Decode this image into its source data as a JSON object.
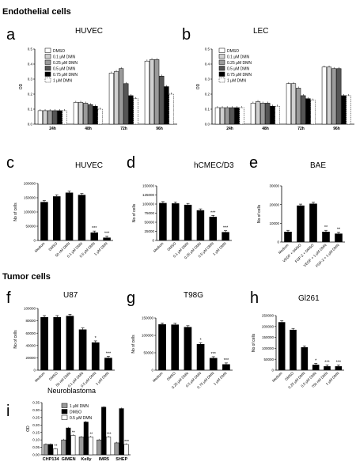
{
  "sections": {
    "endothelial": "Endothelial cells",
    "tumor": "Tumor cells"
  },
  "colors": {
    "black": "#000000",
    "gray": "#9a9a9a",
    "darkgray": "#555555",
    "lightgray": "#d0d0d0",
    "white": "#ffffff"
  },
  "chart_data": [
    {
      "id": "a",
      "type": "bar",
      "title": "HUVEC",
      "ylabel": "OD",
      "ylim": [
        0,
        0.5
      ],
      "yticks": [
        "0.0",
        "0.1",
        "0.2",
        "0.3",
        "0.4",
        "0.5"
      ],
      "categories": [
        "24h",
        "48h",
        "72h",
        "96h"
      ],
      "legend": [
        "DMSO",
        "0.1 μM DMN",
        "0.25 μM DMN",
        "0.5 μM DMN",
        "0.75 μM DMN",
        "1 μM DMN"
      ],
      "series": [
        {
          "name": "DMSO",
          "values": [
            0.09,
            0.145,
            0.34,
            0.42
          ]
        },
        {
          "name": "0.1 μM DMN",
          "values": [
            0.09,
            0.145,
            0.35,
            0.43
          ]
        },
        {
          "name": "0.25 μM DMN",
          "values": [
            0.09,
            0.14,
            0.37,
            0.43
          ]
        },
        {
          "name": "0.5 μM DMN",
          "values": [
            0.09,
            0.13,
            0.27,
            0.32
          ]
        },
        {
          "name": "0.75 μM DMN",
          "values": [
            0.09,
            0.12,
            0.19,
            0.25
          ]
        },
        {
          "name": "1 μM DMN",
          "values": [
            0.09,
            0.1,
            0.17,
            0.2
          ]
        }
      ]
    },
    {
      "id": "b",
      "type": "bar",
      "title": "LEC",
      "ylabel": "OD",
      "ylim": [
        0,
        0.5
      ],
      "yticks": [
        "0.0",
        "0.1",
        "0.2",
        "0.3",
        "0.4",
        "0.5"
      ],
      "categories": [
        "24h",
        "48h",
        "72h",
        "96h"
      ],
      "legend": [
        "DMSO",
        "0.1 μM DMN",
        "0.25 μM DMN",
        "0.5 μM DMN",
        "0.75 μM DMN",
        "1 μM DMN"
      ],
      "series": [
        {
          "name": "DMSO",
          "values": [
            0.11,
            0.14,
            0.27,
            0.38
          ]
        },
        {
          "name": "0.1 μM DMN",
          "values": [
            0.11,
            0.15,
            0.27,
            0.38
          ]
        },
        {
          "name": "0.25 μM DMN",
          "values": [
            0.11,
            0.14,
            0.24,
            0.37
          ]
        },
        {
          "name": "0.5 μM DMN",
          "values": [
            0.11,
            0.14,
            0.19,
            0.37
          ]
        },
        {
          "name": "0.75 μM DMN",
          "values": [
            0.11,
            0.12,
            0.17,
            0.19
          ]
        },
        {
          "name": "1 μM DMN",
          "values": [
            0.11,
            0.12,
            0.16,
            0.19
          ]
        }
      ]
    },
    {
      "id": "c",
      "type": "bar",
      "title": "HUVEC",
      "ylabel": "No of cells",
      "ylim": [
        0,
        200000
      ],
      "yticks": [
        "0",
        "50000",
        "100000",
        "150000",
        "200000"
      ],
      "categories": [
        "Medium",
        "DMSO",
        "50 nM DMN",
        "0.1 μM DMN",
        "0.5 μM DMN",
        "1 μM DMN"
      ],
      "values": [
        135000,
        155000,
        168000,
        160000,
        28000,
        10000
      ],
      "fills": [
        "black",
        "black",
        "black",
        "black",
        "black",
        "black"
      ],
      "sig": [
        "",
        "",
        "",
        "",
        "***",
        "***"
      ]
    },
    {
      "id": "d",
      "type": "bar",
      "title": "hCMEC/D3",
      "ylabel": "No of cells",
      "ylim": [
        0,
        150000
      ],
      "yticks": [
        "0",
        "25000",
        "50000",
        "75000",
        "100000",
        "125000",
        "150000"
      ],
      "categories": [
        "Medium",
        "DMSO",
        "0.1 μM DMN",
        "0.25 μM DMN",
        "0.5 μM DMN",
        "1 μM DMN"
      ],
      "values": [
        103000,
        102000,
        98000,
        83000,
        65000,
        23000
      ],
      "fills": [
        "black",
        "black",
        "black",
        "black",
        "black",
        "black"
      ],
      "sig": [
        "",
        "",
        "",
        "",
        "***",
        "***"
      ]
    },
    {
      "id": "e",
      "type": "bar",
      "title": "BAE",
      "ylabel": "No of cells",
      "ylim": [
        0,
        30000
      ],
      "yticks": [
        "0",
        "10000",
        "20000",
        "30000"
      ],
      "categories": [
        "Medium",
        "VEGF + DMSO",
        "FGF-2 + DMSO",
        "VEGF + 1 μM DMN",
        "FGF-2 + 1 μM DMN"
      ],
      "values": [
        5500,
        19500,
        20500,
        5500,
        4500
      ],
      "fills": [
        "black",
        "black",
        "black",
        "black",
        "black"
      ],
      "sig": [
        "",
        "",
        "",
        "**",
        "**"
      ]
    },
    {
      "id": "f",
      "type": "bar",
      "title": "U87",
      "ylabel": "No of cells",
      "ylim": [
        0,
        100000
      ],
      "yticks": [
        "0",
        "20000",
        "40000",
        "60000",
        "80000",
        "100000"
      ],
      "categories": [
        "Medium",
        "DMSO",
        "50 nM DMN",
        "0.1 μM DMN",
        "0.5 μM DMN",
        "1 μM DMN"
      ],
      "values": [
        86000,
        86000,
        88000,
        66000,
        45000,
        20000
      ],
      "fills": [
        "black",
        "black",
        "black",
        "black",
        "black",
        "black"
      ],
      "sig": [
        "",
        "",
        "",
        "",
        "*",
        "***"
      ]
    },
    {
      "id": "g",
      "type": "bar",
      "title": "T98G",
      "ylabel": "No of cells",
      "ylim": [
        0,
        150000
      ],
      "yticks": [
        "0",
        "50000",
        "100000",
        "150000"
      ],
      "categories": [
        "Medium",
        "DMSO",
        "0.25 μM DMN",
        "0.5 μM DMN",
        "0.75 μM DMN",
        "1 μM DMN"
      ],
      "values": [
        132000,
        131000,
        124000,
        75000,
        35000,
        17000
      ],
      "fills": [
        "black",
        "black",
        "black",
        "black",
        "black",
        "black"
      ],
      "sig": [
        "",
        "",
        "",
        "*",
        "***",
        "***"
      ]
    },
    {
      "id": "h",
      "type": "bar",
      "title": "Gl261",
      "ylabel": "No of cells",
      "ylim": [
        0,
        250000
      ],
      "yticks": [
        "0",
        "50000",
        "100000",
        "150000",
        "200000",
        "250000"
      ],
      "categories": [
        "Medium",
        "DMSO",
        "0.25 μM DMN",
        "0.5 μM DMN",
        "750 nM DMN",
        "1 μM DMN"
      ],
      "values": [
        220000,
        185000,
        105000,
        25000,
        18000,
        18000
      ],
      "fills": [
        "black",
        "black",
        "black",
        "black",
        "black",
        "black"
      ],
      "sig": [
        "",
        "",
        "",
        "*",
        "***",
        "***"
      ]
    },
    {
      "id": "i",
      "type": "bar",
      "title": "Neuroblastoma",
      "ylabel": "OD",
      "ylim": [
        0,
        0.35
      ],
      "yticks": [
        "0.00",
        "0.05",
        "0.10",
        "0.15",
        "0.20",
        "0.25",
        "0.30",
        "0.35"
      ],
      "categories": [
        "CHP134",
        "GIMEN",
        "Kelly",
        "IMR5",
        "SHEP"
      ],
      "legend": [
        "1 μM DMN",
        "DMSO",
        "0.5 μM DMN"
      ],
      "series": [
        {
          "name": "1 μM DMN",
          "fill": "gray",
          "values": [
            0.07,
            0.1,
            0.12,
            0.1,
            0.08
          ]
        },
        {
          "name": "DMSO",
          "fill": "black",
          "values": [
            0.07,
            0.18,
            0.22,
            0.32,
            0.31
          ]
        },
        {
          "name": "0.5 μM DMN",
          "fill": "white",
          "values": [
            0.04,
            0.13,
            0.12,
            0.12,
            0.07
          ]
        }
      ],
      "sig": [
        "**",
        "**",
        "**",
        "***",
        "***"
      ]
    }
  ]
}
